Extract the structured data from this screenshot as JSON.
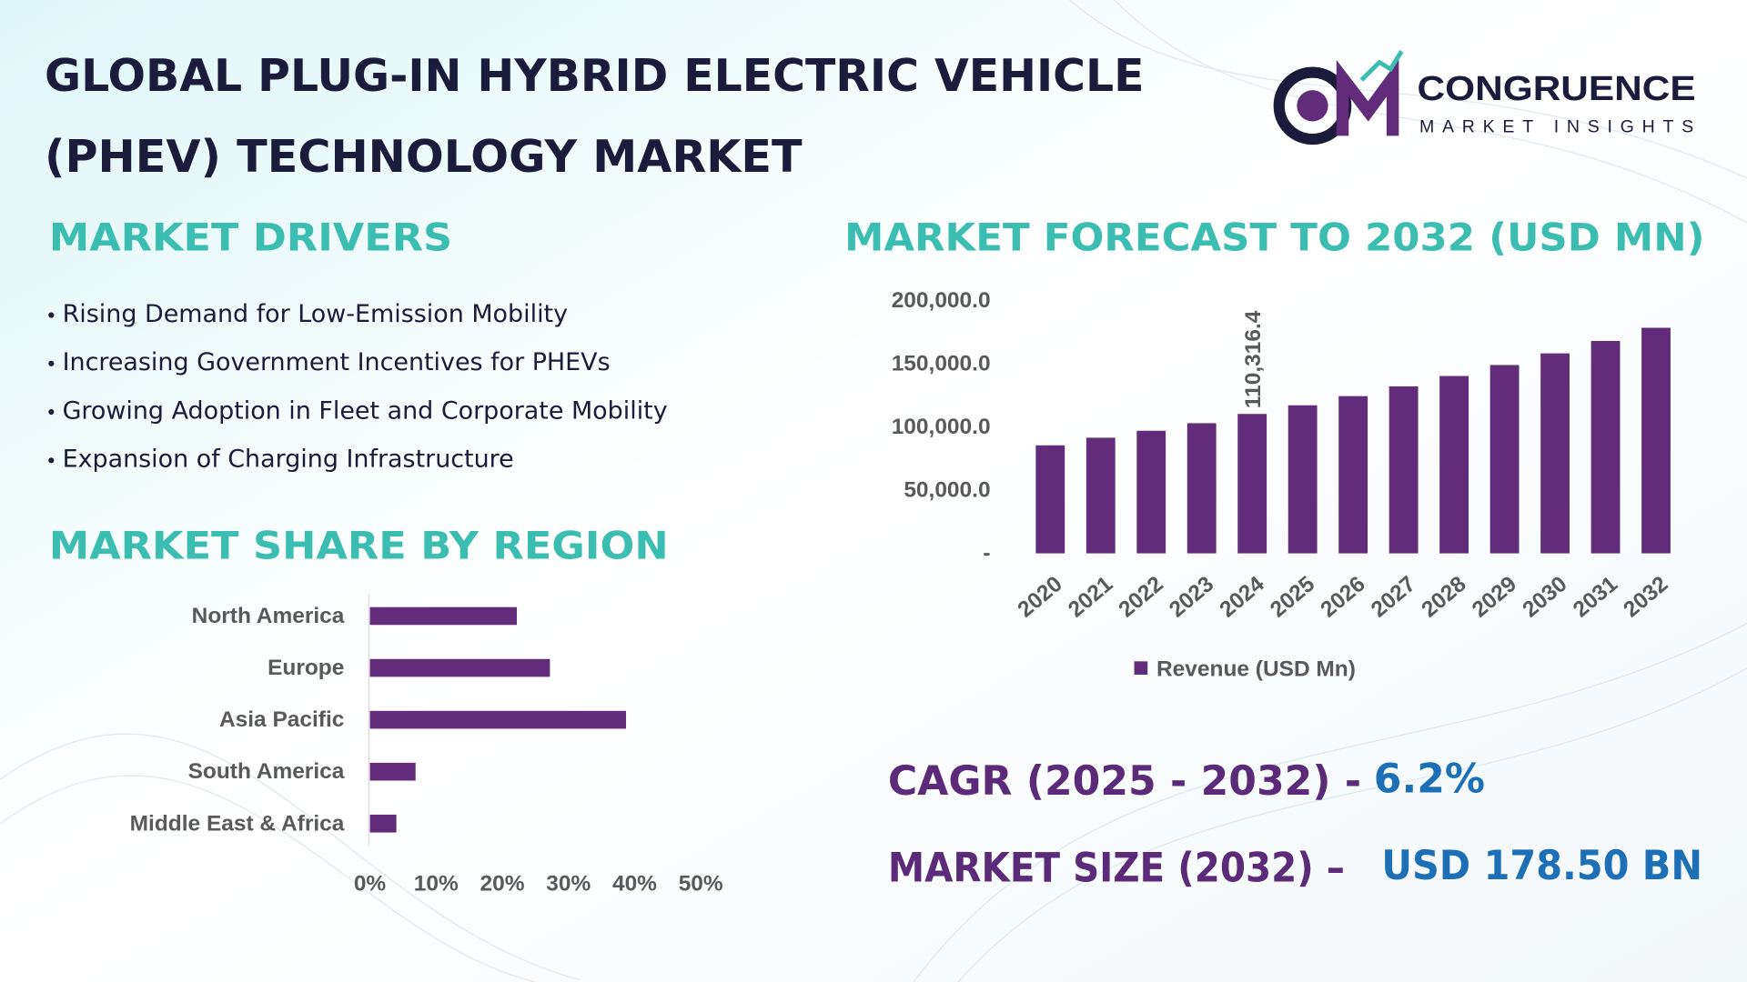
{
  "header": {
    "title_lines": [
      "GLOBAL PLUG-IN HYBRID ELECTRIC VEHICLE",
      "(PHEV) TECHNOLOGY MARKET"
    ]
  },
  "logo": {
    "name": "CONGRUENCE",
    "tagline": "MARKET INSIGHTS"
  },
  "drivers": {
    "heading": "MARKET DRIVERS",
    "items": [
      "Rising Demand for Low-Emission Mobility",
      "Increasing Government Incentives for PHEVs",
      "Growing Adoption in Fleet and Corporate Mobility",
      "Expansion of Charging Infrastructure"
    ]
  },
  "chart_data": [
    {
      "type": "bar",
      "title": "MARKET FORECAST TO 2032 (USD MN)",
      "categories": [
        "2020",
        "2021",
        "2022",
        "2023",
        "2024",
        "2025",
        "2026",
        "2027",
        "2028",
        "2029",
        "2030",
        "2031",
        "2032"
      ],
      "series": [
        {
          "name": "Revenue (USD Mn)",
          "color": "#612d7a",
          "values": [
            85500,
            91500,
            97000,
            103000,
            110316.4,
            117156,
            124419,
            132133,
            140325,
            149025,
            158265,
            168077,
            178500
          ],
          "value_labels": [
            null,
            null,
            null,
            null,
            "110,316.4",
            null,
            null,
            null,
            null,
            null,
            null,
            null,
            null
          ]
        }
      ],
      "ylim": [
        0,
        200000
      ],
      "yticks": [
        {
          "value": 0,
          "label": "-"
        },
        {
          "value": 50000,
          "label": "50,000.0"
        },
        {
          "value": 100000,
          "label": "100,000.0"
        },
        {
          "value": 150000,
          "label": "150,000.0"
        },
        {
          "value": 200000,
          "label": "200,000.0"
        }
      ],
      "legend": "bottom"
    },
    {
      "type": "barh",
      "title": "MARKET SHARE BY REGION",
      "categories": [
        "North America",
        "Europe",
        "Asia Pacific",
        "South America",
        "Middle East & Africa"
      ],
      "values": [
        22.2,
        27.2,
        38.7,
        6.9,
        4.0
      ],
      "color": "#612d7a",
      "xlim": [
        0,
        50
      ],
      "xticks": [
        {
          "value": 0,
          "label": "0%"
        },
        {
          "value": 10,
          "label": "10%"
        },
        {
          "value": 20,
          "label": "20%"
        },
        {
          "value": 30,
          "label": "30%"
        },
        {
          "value": 40,
          "label": "40%"
        },
        {
          "value": 50,
          "label": "50%"
        }
      ]
    }
  ],
  "summary": {
    "cagr_label": "CAGR (2025 - 2032) -",
    "cagr_value": "6.2%",
    "size_label": "MARKET SIZE (2032) –",
    "size_value": "USD 178.50 BN"
  }
}
